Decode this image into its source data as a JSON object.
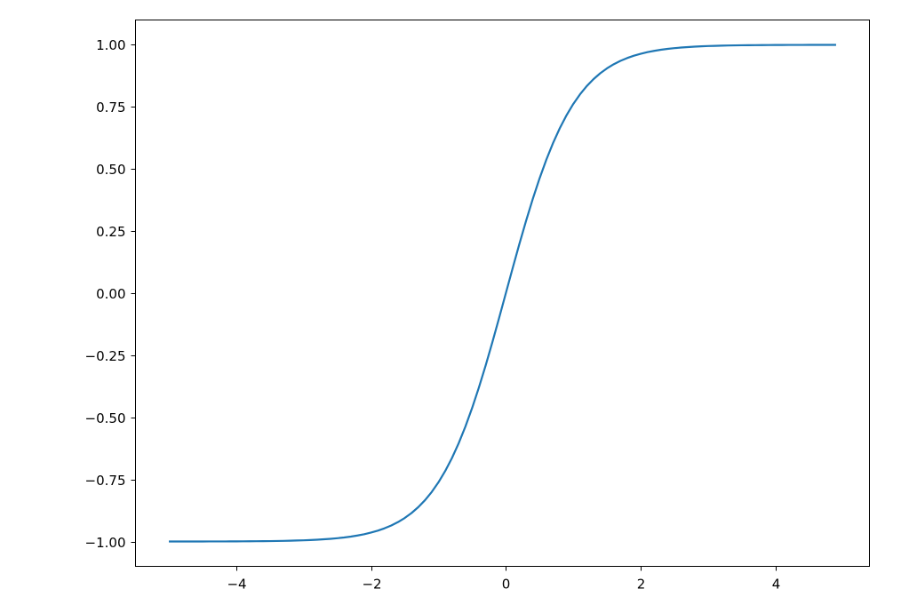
{
  "chart_data": {
    "type": "line",
    "title": "",
    "xlabel": "",
    "ylabel": "",
    "xlim": [
      -5.495,
      5.395
    ],
    "ylim": [
      -1.1,
      1.1
    ],
    "grid": false,
    "line_color": "#1f77b4",
    "x_ticks": [
      -4,
      -2,
      0,
      2,
      4
    ],
    "x_tick_labels": [
      "−4",
      "−2",
      "0",
      "2",
      "4"
    ],
    "y_ticks": [
      -1.0,
      -0.75,
      -0.5,
      -0.25,
      0.0,
      0.25,
      0.5,
      0.75,
      1.0
    ],
    "y_tick_labels": [
      "−1.00",
      "−0.75",
      "−0.50",
      "−0.25",
      "0.00",
      "0.25",
      "0.50",
      "0.75",
      "1.00"
    ],
    "series": [
      {
        "x": [
          -5.0,
          -4.9,
          -4.8,
          -4.7,
          -4.6,
          -4.5,
          -4.4,
          -4.3,
          -4.2,
          -4.1,
          -4.0,
          -3.9,
          -3.8,
          -3.7,
          -3.6,
          -3.5,
          -3.4,
          -3.3,
          -3.2,
          -3.1,
          -3.0,
          -2.9,
          -2.8,
          -2.7,
          -2.6,
          -2.5,
          -2.4,
          -2.3,
          -2.2,
          -2.1,
          -2.0,
          -1.9,
          -1.8,
          -1.7,
          -1.6,
          -1.5,
          -1.4,
          -1.3,
          -1.2,
          -1.1,
          -1.0,
          -0.9,
          -0.8,
          -0.7,
          -0.6,
          -0.5,
          -0.4,
          -0.3,
          -0.2,
          -0.1,
          0.0,
          0.1,
          0.2,
          0.3,
          0.4,
          0.5,
          0.6,
          0.7,
          0.8,
          0.9,
          1.0,
          1.1,
          1.2,
          1.3,
          1.4,
          1.5,
          1.6,
          1.7,
          1.8,
          1.9,
          2.0,
          2.1,
          2.2,
          2.3,
          2.4,
          2.5,
          2.6,
          2.7,
          2.8,
          2.9,
          3.0,
          3.1,
          3.2,
          3.3,
          3.4,
          3.5,
          3.6,
          3.7,
          3.8,
          3.9,
          4.0,
          4.1,
          4.2,
          4.3,
          4.4,
          4.5,
          4.6,
          4.7,
          4.8,
          4.9
        ],
        "y": [
          -0.9999,
          -0.9999,
          -0.9999,
          -0.9998,
          -0.9998,
          -0.9998,
          -0.9997,
          -0.9996,
          -0.9996,
          -0.9995,
          -0.9993,
          -0.9992,
          -0.999,
          -0.9988,
          -0.9985,
          -0.9982,
          -0.9978,
          -0.9973,
          -0.9967,
          -0.9959,
          -0.9951,
          -0.994,
          -0.9926,
          -0.991,
          -0.989,
          -0.9866,
          -0.9837,
          -0.9801,
          -0.9757,
          -0.9705,
          -0.964,
          -0.9562,
          -0.9468,
          -0.9354,
          -0.9217,
          -0.9051,
          -0.8854,
          -0.8617,
          -0.8337,
          -0.8005,
          -0.7616,
          -0.7163,
          -0.664,
          -0.6044,
          -0.537,
          -0.4621,
          -0.3799,
          -0.2913,
          -0.1974,
          -0.0997,
          0.0,
          0.0997,
          0.1974,
          0.2913,
          0.3799,
          0.4621,
          0.537,
          0.6044,
          0.664,
          0.7163,
          0.7616,
          0.8005,
          0.8337,
          0.8617,
          0.8854,
          0.9051,
          0.9217,
          0.9354,
          0.9468,
          0.9562,
          0.964,
          0.9705,
          0.9757,
          0.9801,
          0.9837,
          0.9866,
          0.989,
          0.991,
          0.9926,
          0.994,
          0.9951,
          0.9959,
          0.9967,
          0.9973,
          0.9978,
          0.9982,
          0.9985,
          0.9988,
          0.999,
          0.9992,
          0.9993,
          0.9995,
          0.9996,
          0.9996,
          0.9997,
          0.9998,
          0.9998,
          0.9998,
          0.9999,
          0.9999
        ]
      }
    ]
  }
}
